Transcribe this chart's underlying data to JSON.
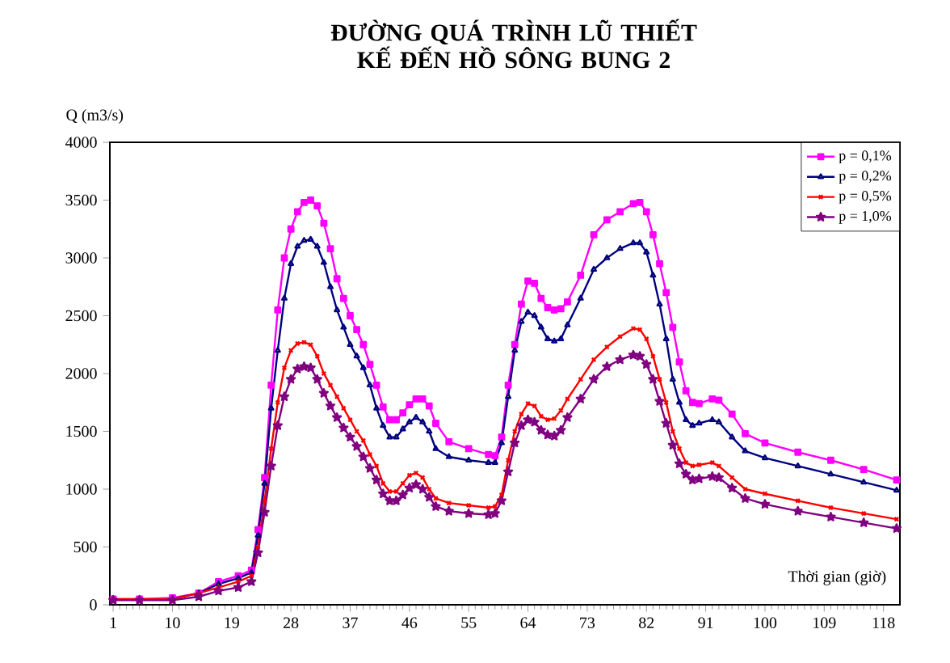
{
  "chart_data": {
    "type": "line",
    "title": "ĐƯỜNG QUÁ TRÌNH LŨ THIẾT KẾ ĐẾN HỒ SÔNG BUNG 2",
    "ylabel": "Q (m3/s)",
    "xlabel": "Thời gian (giờ)",
    "x": [
      1,
      5,
      10,
      14,
      17,
      20,
      22,
      23,
      24,
      25,
      26,
      27,
      28,
      29,
      30,
      31,
      32,
      33,
      34,
      35,
      36,
      37,
      38,
      39,
      40,
      41,
      42,
      43,
      44,
      45,
      46,
      47,
      48,
      49,
      50,
      52,
      55,
      58,
      59,
      60,
      61,
      62,
      63,
      64,
      65,
      66,
      67,
      68,
      69,
      70,
      72,
      74,
      76,
      78,
      80,
      81,
      82,
      83,
      84,
      85,
      86,
      87,
      88,
      89,
      90,
      92,
      93,
      95,
      97,
      100,
      105,
      110,
      115,
      120
    ],
    "xlim": [
      0.5,
      120.5
    ],
    "xticks": [
      1,
      10,
      19,
      28,
      37,
      46,
      55,
      64,
      73,
      82,
      91,
      100,
      109,
      118
    ],
    "ylim": [
      0,
      4000
    ],
    "yticks": [
      0,
      500,
      1000,
      1500,
      2000,
      2500,
      3000,
      3500,
      4000
    ],
    "grid": false,
    "legend": "top right",
    "series": [
      {
        "name": "p = 0,1%",
        "color": "#ff00ff",
        "marker": "square",
        "values": [
          50,
          50,
          60,
          100,
          200,
          250,
          300,
          650,
          1100,
          1900,
          2550,
          3000,
          3250,
          3400,
          3480,
          3500,
          3450,
          3300,
          3080,
          2820,
          2650,
          2500,
          2380,
          2250,
          2080,
          1900,
          1710,
          1600,
          1600,
          1660,
          1730,
          1780,
          1780,
          1720,
          1570,
          1410,
          1350,
          1300,
          1290,
          1450,
          1900,
          2250,
          2600,
          2800,
          2780,
          2650,
          2570,
          2550,
          2560,
          2620,
          2850,
          3200,
          3330,
          3400,
          3470,
          3480,
          3400,
          3200,
          2950,
          2700,
          2400,
          2100,
          1850,
          1750,
          1740,
          1780,
          1770,
          1650,
          1480,
          1400,
          1320,
          1250,
          1170,
          1080
        ]
      },
      {
        "name": "p = 0,2%",
        "color": "#000080",
        "marker": "triangle",
        "values": [
          null,
          null,
          50,
          100,
          180,
          230,
          280,
          600,
          1050,
          1700,
          2200,
          2650,
          2950,
          3100,
          3150,
          3160,
          3100,
          2960,
          2750,
          2550,
          2400,
          2250,
          2150,
          2050,
          1900,
          1700,
          1550,
          1450,
          1450,
          1520,
          1580,
          1620,
          1580,
          1500,
          1350,
          1280,
          1250,
          1230,
          1230,
          1400,
          1800,
          2200,
          2450,
          2530,
          2500,
          2400,
          2300,
          2280,
          2300,
          2420,
          2650,
          2900,
          3000,
          3080,
          3130,
          3130,
          3050,
          2850,
          2600,
          2300,
          1950,
          1750,
          1600,
          1550,
          1570,
          1600,
          1580,
          1450,
          1330,
          1270,
          1200,
          1130,
          1060,
          990
        ]
      },
      {
        "name": "p = 0,5%",
        "color": "#ff0000",
        "marker": "cross",
        "values": [
          50,
          50,
          50,
          100,
          150,
          200,
          250,
          500,
          900,
          1350,
          1750,
          2050,
          2200,
          2260,
          2270,
          2250,
          2150,
          2000,
          1900,
          1800,
          1700,
          1600,
          1500,
          1420,
          1300,
          1200,
          1050,
          980,
          980,
          1050,
          1120,
          1140,
          1100,
          1000,
          920,
          880,
          860,
          840,
          850,
          950,
          1250,
          1500,
          1650,
          1740,
          1720,
          1630,
          1600,
          1610,
          1680,
          1780,
          1950,
          2120,
          2230,
          2320,
          2390,
          2380,
          2300,
          2150,
          1950,
          1750,
          1500,
          1350,
          1230,
          1200,
          1210,
          1230,
          1200,
          1100,
          1000,
          960,
          900,
          840,
          790,
          740
        ]
      },
      {
        "name": "p = 1,0%",
        "color": "#800080",
        "marker": "star",
        "values": [
          40,
          40,
          40,
          70,
          120,
          150,
          200,
          450,
          800,
          1200,
          1550,
          1800,
          1950,
          2040,
          2060,
          2050,
          1950,
          1830,
          1720,
          1620,
          1530,
          1450,
          1370,
          1280,
          1180,
          1080,
          960,
          900,
          900,
          950,
          1010,
          1040,
          1000,
          930,
          850,
          810,
          790,
          780,
          790,
          900,
          1150,
          1400,
          1550,
          1600,
          1580,
          1510,
          1470,
          1460,
          1510,
          1620,
          1780,
          1950,
          2060,
          2120,
          2160,
          2150,
          2080,
          1950,
          1760,
          1570,
          1380,
          1220,
          1130,
          1080,
          1090,
          1110,
          1100,
          1010,
          920,
          870,
          810,
          760,
          710,
          660
        ]
      }
    ]
  }
}
